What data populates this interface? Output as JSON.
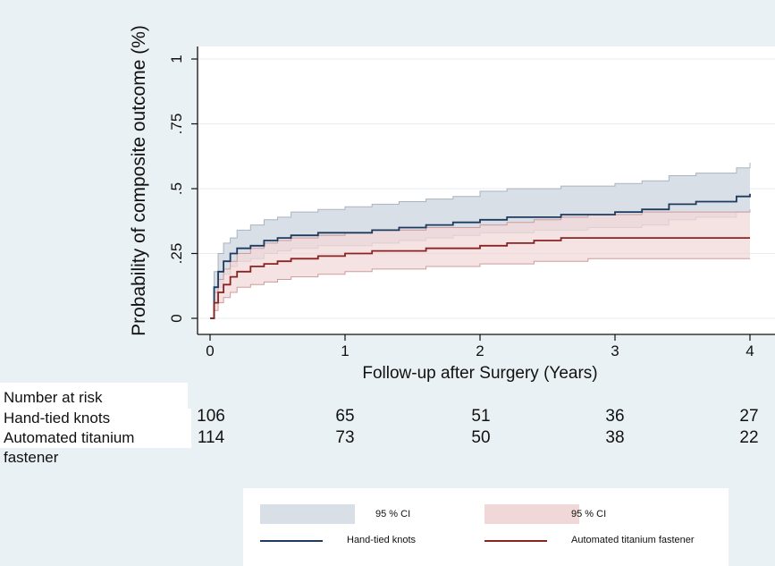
{
  "colors": {
    "background": "#eaf1f4",
    "hand_tied_line": "#1f3a5f",
    "hand_tied_ci_fill": "#d9dfe6",
    "hand_tied_ci_edge": "#a9b3bf",
    "automated_line": "#8b2323",
    "automated_ci_fill": "#f1d8d8",
    "automated_ci_edge": "#cf9b9b",
    "axis": "#111111",
    "grid": "#e6ecf0"
  },
  "chart_data": {
    "type": "line",
    "title": "",
    "xlabel": "Follow-up after Surgery (Years)",
    "ylabel": "Probability of composite outcome (%)",
    "xlim": [
      0,
      4
    ],
    "ylim": [
      0,
      1
    ],
    "x_ticks": [
      "0",
      "1",
      "2",
      "3",
      "4"
    ],
    "y_ticks": [
      "0",
      ".25",
      ".5",
      ".75",
      "1"
    ],
    "grid": true,
    "series": [
      {
        "name": "Hand-tied knots",
        "x": [
          0,
          0.03,
          0.06,
          0.1,
          0.15,
          0.2,
          0.3,
          0.4,
          0.5,
          0.6,
          0.8,
          1.0,
          1.2,
          1.4,
          1.6,
          1.8,
          2.0,
          2.2,
          2.4,
          2.6,
          2.8,
          3.0,
          3.2,
          3.4,
          3.6,
          3.8,
          3.9,
          4.0
        ],
        "values": [
          0,
          0.12,
          0.18,
          0.22,
          0.25,
          0.27,
          0.28,
          0.3,
          0.31,
          0.32,
          0.33,
          0.33,
          0.34,
          0.35,
          0.36,
          0.37,
          0.38,
          0.39,
          0.39,
          0.4,
          0.4,
          0.41,
          0.42,
          0.44,
          0.45,
          0.45,
          0.47,
          0.48
        ]
      },
      {
        "name": "Automated titanium fastener",
        "x": [
          0,
          0.03,
          0.06,
          0.1,
          0.15,
          0.2,
          0.3,
          0.4,
          0.5,
          0.6,
          0.8,
          1.0,
          1.2,
          1.4,
          1.6,
          1.8,
          2.0,
          2.2,
          2.4,
          2.6,
          2.8,
          3.0,
          3.2,
          3.4,
          3.6,
          3.8,
          4.0
        ],
        "values": [
          0,
          0.06,
          0.1,
          0.13,
          0.16,
          0.18,
          0.2,
          0.21,
          0.22,
          0.23,
          0.24,
          0.25,
          0.26,
          0.26,
          0.27,
          0.27,
          0.28,
          0.29,
          0.3,
          0.31,
          0.31,
          0.31,
          0.31,
          0.31,
          0.31,
          0.31,
          0.31
        ]
      }
    ],
    "ci_bands": [
      {
        "name": "Hand-tied knots 95 % CI",
        "x": [
          0,
          0.03,
          0.06,
          0.1,
          0.15,
          0.2,
          0.3,
          0.4,
          0.5,
          0.6,
          0.8,
          1.0,
          1.2,
          1.4,
          1.6,
          1.8,
          2.0,
          2.2,
          2.4,
          2.6,
          2.8,
          3.0,
          3.2,
          3.4,
          3.6,
          3.8,
          3.9,
          4.0
        ],
        "lower": [
          0,
          0.07,
          0.12,
          0.17,
          0.2,
          0.22,
          0.23,
          0.25,
          0.26,
          0.27,
          0.28,
          0.28,
          0.29,
          0.3,
          0.31,
          0.32,
          0.33,
          0.33,
          0.34,
          0.34,
          0.35,
          0.35,
          0.36,
          0.38,
          0.39,
          0.39,
          0.41,
          0.42
        ],
        "upper": [
          0,
          0.18,
          0.25,
          0.29,
          0.31,
          0.34,
          0.36,
          0.38,
          0.39,
          0.41,
          0.42,
          0.43,
          0.44,
          0.45,
          0.46,
          0.47,
          0.49,
          0.5,
          0.5,
          0.51,
          0.51,
          0.52,
          0.53,
          0.55,
          0.56,
          0.56,
          0.58,
          0.6
        ]
      },
      {
        "name": "Automated titanium fastener 95 % CI",
        "x": [
          0,
          0.03,
          0.06,
          0.1,
          0.15,
          0.2,
          0.3,
          0.4,
          0.5,
          0.6,
          0.8,
          1.0,
          1.2,
          1.4,
          1.6,
          1.8,
          2.0,
          2.2,
          2.4,
          2.6,
          2.8,
          3.0,
          3.2,
          3.4,
          3.6,
          3.8,
          4.0
        ],
        "lower": [
          0,
          0.03,
          0.06,
          0.08,
          0.1,
          0.12,
          0.13,
          0.14,
          0.15,
          0.16,
          0.17,
          0.18,
          0.19,
          0.19,
          0.2,
          0.2,
          0.21,
          0.21,
          0.22,
          0.22,
          0.23,
          0.23,
          0.23,
          0.23,
          0.23,
          0.23,
          0.23
        ],
        "upper": [
          0,
          0.1,
          0.15,
          0.19,
          0.22,
          0.25,
          0.27,
          0.29,
          0.3,
          0.31,
          0.32,
          0.33,
          0.34,
          0.34,
          0.35,
          0.35,
          0.36,
          0.37,
          0.38,
          0.39,
          0.4,
          0.4,
          0.41,
          0.41,
          0.41,
          0.41,
          0.41
        ]
      }
    ]
  },
  "risk_table": {
    "title": "Number at risk",
    "rows": [
      {
        "label": "Hand-tied knots",
        "values": [
          "106",
          "65",
          "51",
          "36",
          "27"
        ]
      },
      {
        "label": "Automated titanium fastener",
        "values": [
          "114",
          "73",
          "50",
          "38",
          "22"
        ]
      }
    ]
  },
  "legend": {
    "hand_tied_ci": "95 % CI",
    "automated_ci": "95 % CI",
    "hand_tied_line": "Hand-tied knots",
    "automated_line": "Automated titanium fastener"
  }
}
